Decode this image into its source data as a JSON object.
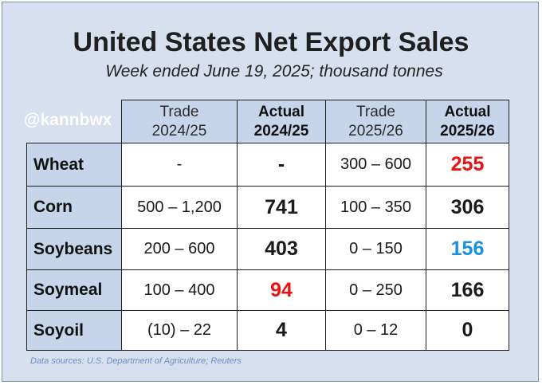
{
  "title": "United States Net Export Sales",
  "subtitle": "Week ended June 19, 2025; thousand tonnes",
  "watermark": "@kannbwx",
  "footnote": "Data sources: U.S. Department of Agriculture; Reuters",
  "columns": [
    {
      "line1": "Trade",
      "line2": "2024/25"
    },
    {
      "line1": "Actual",
      "line2": "2024/25"
    },
    {
      "line1": "Trade",
      "line2": "2025/26"
    },
    {
      "line1": "Actual",
      "line2": "2025/26"
    }
  ],
  "rows": [
    {
      "label": "Wheat",
      "trade_2425": "-",
      "actual_2425": "-",
      "trade_2526": "300 – 600",
      "actual_2526": "255"
    },
    {
      "label": "Corn",
      "trade_2425": "500 – 1,200",
      "actual_2425": "741",
      "trade_2526": "100 – 350",
      "actual_2526": "306"
    },
    {
      "label": "Soybeans",
      "trade_2425": "200 – 600",
      "actual_2425": "403",
      "trade_2526": "0 – 150",
      "actual_2526": "156"
    },
    {
      "label": "Soymeal",
      "trade_2425": "100 – 400",
      "actual_2425": "94",
      "trade_2526": "0 – 250",
      "actual_2526": "166"
    },
    {
      "label": "Soyoil",
      "trade_2425": "(10) – 22",
      "actual_2425": "4",
      "trade_2526": "0 – 12",
      "actual_2526": "0"
    }
  ],
  "colors": {
    "below_trade_range": "#ee1111",
    "within_trade_range": "#1a90e0",
    "header_fill": "#c6d5ea",
    "background": "#d6e0ee"
  }
}
